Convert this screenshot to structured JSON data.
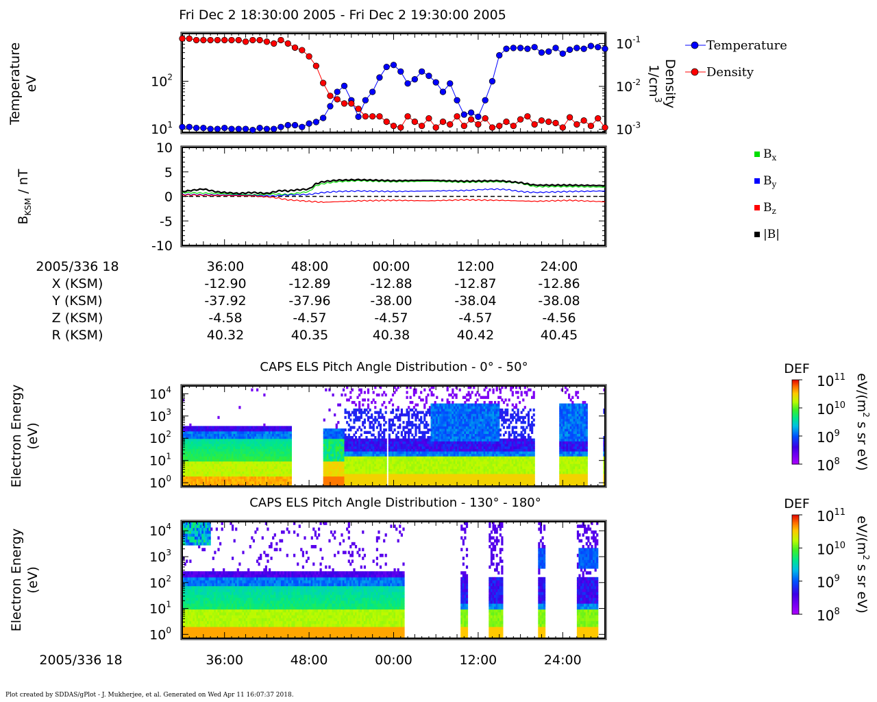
{
  "title": "Fri Dec 2 18:30:00 2005 - Fri Dec 2 19:30:00 2005",
  "footer": "Plot created by SDDAS/gPlot - J. Mukherjee, et al.  Generated on Wed Apr 11 16:07:37 2018.",
  "chart_data": [
    {
      "type": "scatter",
      "panel": "moments",
      "ylabel_line1": "Temperature",
      "ylabel_line2": "eV",
      "y2label_line1": "Density",
      "y2label_line2": "1/cm",
      "y2label_sup": "3",
      "yticks": [
        {
          "base": "10",
          "exp": "2",
          "v": 100
        },
        {
          "base": "10",
          "exp": "1",
          "v": 10
        }
      ],
      "y2ticks": [
        {
          "base": "10",
          "exp": "-1",
          "v": 0.1
        },
        {
          "base": "10",
          "exp": "-2",
          "v": 0.01
        },
        {
          "base": "10",
          "exp": "-3",
          "v": 0.001
        }
      ],
      "ylim": [
        8.5,
        1000
      ],
      "y2lim": [
        0.00085,
        0.17
      ],
      "yscale": "log",
      "series": [
        {
          "name": "Temperature",
          "color": "#0000ff",
          "x": [
            0,
            1,
            2,
            3,
            4,
            5,
            6,
            7,
            8,
            9,
            10,
            11,
            12,
            13,
            14,
            15,
            16,
            17,
            18,
            19,
            20,
            21,
            22,
            23,
            24,
            25,
            26,
            27,
            28,
            29,
            30,
            31,
            32,
            33,
            34,
            35,
            36,
            37,
            38,
            39,
            40,
            41,
            42,
            43,
            44,
            45,
            46,
            47,
            48,
            49,
            50,
            51,
            52,
            53,
            54,
            55,
            56,
            57,
            58,
            59,
            60
          ],
          "values": [
            11,
            11,
            10.5,
            10.5,
            10,
            10,
            10.5,
            10,
            10,
            10,
            9.5,
            10.5,
            10,
            10,
            11,
            12,
            12,
            11,
            13,
            14,
            17,
            30,
            60,
            80,
            40,
            18,
            40,
            60,
            120,
            200,
            220,
            160,
            90,
            110,
            160,
            130,
            95,
            60,
            90,
            40,
            20,
            22,
            18,
            40,
            100,
            350,
            480,
            500,
            500,
            480,
            520,
            400,
            420,
            500,
            380,
            460,
            500,
            480,
            550,
            520,
            480
          ]
        },
        {
          "name": "Density",
          "color": "#ff0000",
          "x": [
            0,
            1,
            2,
            3,
            4,
            5,
            6,
            7,
            8,
            9,
            10,
            11,
            12,
            13,
            14,
            15,
            16,
            17,
            18,
            19,
            20,
            21,
            22,
            23,
            24,
            25,
            26,
            27,
            28,
            29,
            30,
            31,
            32,
            33,
            34,
            35,
            36,
            37,
            38,
            39,
            40,
            41,
            42,
            43,
            44,
            45,
            46,
            47,
            48,
            49,
            50,
            51,
            52,
            53,
            54,
            55,
            56,
            57,
            58,
            59,
            60
          ],
          "values": [
            0.13,
            0.13,
            0.12,
            0.12,
            0.12,
            0.12,
            0.12,
            0.12,
            0.12,
            0.11,
            0.12,
            0.12,
            0.11,
            0.1,
            0.12,
            0.1,
            0.08,
            0.07,
            0.05,
            0.03,
            0.012,
            0.006,
            0.005,
            0.004,
            0.004,
            0.003,
            0.002,
            0.002,
            0.002,
            0.0015,
            0.0012,
            0.0011,
            0.002,
            0.0015,
            0.0012,
            0.0018,
            0.0011,
            0.0015,
            0.0013,
            0.002,
            0.0012,
            0.0017,
            0.0013,
            0.0018,
            0.0011,
            0.0012,
            0.0015,
            0.0012,
            0.0017,
            0.002,
            0.0013,
            0.0016,
            0.0015,
            0.0014,
            0.0011,
            0.0019,
            0.0013,
            0.0016,
            0.0012,
            0.0018,
            0.0011
          ]
        }
      ]
    },
    {
      "type": "line",
      "panel": "magnetic-field",
      "ylabel_main": "B",
      "ylabel_sub": "KSM",
      "ylabel_rest": " / nT",
      "ylim": [
        -10,
        10
      ],
      "yticks": [
        10,
        5,
        0,
        -5,
        -10
      ],
      "series": [
        {
          "name_main": "B",
          "name_sub": "x",
          "color": "#00dd00",
          "key": "bx",
          "x": [
            0,
            5,
            10,
            13,
            15,
            18,
            19,
            20,
            22,
            25,
            30,
            35,
            40,
            45,
            48,
            50,
            52,
            55,
            60
          ],
          "values": [
            0.8,
            0.6,
            0.3,
            0.5,
            0.4,
            1.0,
            2.2,
            2.6,
            3.0,
            3.2,
            3.0,
            3.1,
            2.9,
            3.0,
            2.7,
            2.0,
            2.0,
            2.0,
            1.9
          ]
        },
        {
          "name_main": "B",
          "name_sub": "y",
          "color": "#0000ff",
          "key": "by",
          "x": [
            0,
            5,
            10,
            13,
            15,
            18,
            20,
            22,
            25,
            30,
            35,
            40,
            44,
            46,
            48,
            50,
            55,
            60
          ],
          "values": [
            0.4,
            0.3,
            0.2,
            0.1,
            0.3,
            0.4,
            0.8,
            1.0,
            1.1,
            1.0,
            1.1,
            1.2,
            1.5,
            1.4,
            1.0,
            0.8,
            1.0,
            1.1
          ]
        },
        {
          "name_main": "B",
          "name_sub": "z",
          "color": "#ff0000",
          "key": "bz",
          "x": [
            0,
            5,
            10,
            13,
            15,
            18,
            20,
            25,
            30,
            35,
            40,
            45,
            50,
            55,
            60
          ],
          "values": [
            0.3,
            0.2,
            0.1,
            -0.2,
            -0.7,
            -1.0,
            -1.2,
            -0.9,
            -0.8,
            -0.9,
            -0.7,
            -0.8,
            -1.0,
            -0.8,
            -1.1
          ]
        },
        {
          "name_main": "|B|",
          "name_sub": "",
          "color": "#000000",
          "key": "bt",
          "x": [
            0,
            3,
            5,
            8,
            10,
            12,
            14,
            15,
            16,
            18,
            19,
            20,
            22,
            25,
            30,
            35,
            40,
            45,
            48,
            50,
            55,
            60
          ],
          "values": [
            1.0,
            1.5,
            0.9,
            0.6,
            0.8,
            0.6,
            1.2,
            1.1,
            1.3,
            1.5,
            2.6,
            3.0,
            3.3,
            3.4,
            3.2,
            3.3,
            3.1,
            3.2,
            2.8,
            2.3,
            2.3,
            2.2
          ]
        }
      ]
    },
    {
      "type": "heatmap",
      "panel": "pad-low",
      "title": "CAPS ELS Pitch Angle Distribution - 0° - 50°",
      "ylabel_line1": "Electron Energy",
      "ylabel_line2": "(eV)",
      "yscale": "log",
      "yticks": [
        {
          "base": "10",
          "exp": "4"
        },
        {
          "base": "10",
          "exp": "3"
        },
        {
          "base": "10",
          "exp": "2"
        },
        {
          "base": "10",
          "exp": "1"
        },
        {
          "base": "10",
          "exp": "0"
        }
      ],
      "colorbar": {
        "label": "DEF",
        "unit_pre": "eV/(m",
        "unit_sup": "2",
        "unit_post": " s sr eV)",
        "ticks": [
          {
            "base": "10",
            "exp": "11"
          },
          {
            "base": "10",
            "exp": "10"
          },
          {
            "base": "10",
            "exp": "9"
          },
          {
            "base": "10",
            "exp": "8"
          }
        ]
      }
    },
    {
      "type": "heatmap",
      "panel": "pad-high",
      "title": "CAPS ELS Pitch Angle Distribution - 130° - 180°",
      "ylabel_line1": "Electron Energy",
      "ylabel_line2": "(eV)",
      "yscale": "log",
      "yticks": [
        {
          "base": "10",
          "exp": "4"
        },
        {
          "base": "10",
          "exp": "3"
        },
        {
          "base": "10",
          "exp": "2"
        },
        {
          "base": "10",
          "exp": "1"
        },
        {
          "base": "10",
          "exp": "0"
        }
      ],
      "colorbar": {
        "label": "DEF",
        "unit_pre": "eV/(m",
        "unit_sup": "2",
        "unit_post": " s sr eV)",
        "ticks": [
          {
            "base": "10",
            "exp": "11"
          },
          {
            "base": "10",
            "exp": "10"
          },
          {
            "base": "10",
            "exp": "9"
          },
          {
            "base": "10",
            "exp": "8"
          }
        ]
      }
    }
  ],
  "ephemeris": {
    "date_label": "2005/336 18",
    "times": [
      "36:00",
      "48:00",
      "00:00",
      "12:00",
      "24:00"
    ],
    "rows": [
      {
        "label": "X (KSM)",
        "values": [
          "-12.90",
          "-12.89",
          "-12.88",
          "-12.87",
          "-12.86"
        ]
      },
      {
        "label": "Y (KSM)",
        "values": [
          "-37.92",
          "-37.96",
          "-38.00",
          "-38.04",
          "-38.08"
        ]
      },
      {
        "label": "Z (KSM)",
        "values": [
          "-4.58",
          "-4.57",
          "-4.57",
          "-4.57",
          "-4.56"
        ]
      },
      {
        "label": "R (KSM)",
        "values": [
          "40.32",
          "40.35",
          "40.38",
          "40.42",
          "40.45"
        ]
      }
    ]
  },
  "bottom_axis": {
    "date_label": "2005/336 18",
    "times": [
      "36:00",
      "48:00",
      "00:00",
      "12:00",
      "24:00"
    ]
  }
}
